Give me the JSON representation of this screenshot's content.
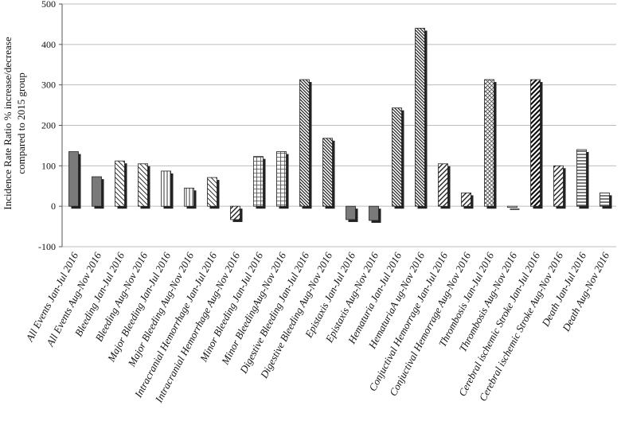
{
  "chart_data": {
    "type": "bar",
    "title": "",
    "xlabel": "",
    "ylabel": "Incidence Rate Ratio % increase/decrease compared to 2015 group",
    "ylabel_lines": [
      "Incidence  Rate  Ratio % increase/decrease",
      "compared to 2015 group"
    ],
    "ylim": [
      -100,
      500
    ],
    "yticks": [
      -100,
      0,
      100,
      200,
      300,
      400,
      500
    ],
    "grid": true,
    "legend": "none",
    "colors": {
      "bar_stroke": "#222222",
      "shadow": "#222222",
      "grid": "#bdbdbd",
      "axis": "#555555"
    },
    "categories": [
      "All Events  Jan-Jul 2016",
      "All Events Aug-Nov 2016",
      "Bleeding  Jan-Jul 2016",
      "Bleeding  Aug-Nov 2016",
      "Major Bleeding  Jan-Jul 2016",
      "Major Bleeding  Aug-Nov 2016",
      "Intracranial  Hemorrhage  Jan-Jul 2016",
      "Intracranial  Hemorrhage  Aug-Nov 2016",
      "Minor  Bleeding  Jan-Jul 2016",
      "Minor  BleedingAug-Nov 2016",
      "Digestive  Bleeding  Jan-Jul 2016",
      "Digestive  Bleeding  Aug-Nov 2016",
      "Epistaxis  Jan-Jul 2016",
      "Epistaxis  Aug-Nov 2016",
      "Hematuria  Jan-Jul 2016",
      "HematuriaA  ug-Nov 2016",
      "Conjuctival  Hemorrage  Jan-Jul 2016",
      "Conjuctival  Hemorrage  Aug-Nov 2016",
      "Thrombosis  Jan-Jul 2016",
      "Thrombosis  Aug-Nov 2016",
      "Cerebral ischemic  Stroke  Jan-Jul 2016",
      "Cerebral ischemic  Stroke Aug-Nov 2016",
      "Death  Jan-Jul 2016",
      "Death  Aug-Nov 2016"
    ],
    "values": [
      135,
      73,
      112,
      105,
      87,
      45,
      71,
      -33,
      123,
      135,
      313,
      168,
      -33,
      -35,
      243,
      440,
      105,
      33,
      313,
      0,
      313,
      100,
      140,
      33
    ],
    "patterns": [
      "solid",
      "solid",
      "diag-left-light",
      "diag-left-light",
      "vertical",
      "vertical",
      "diag-left-light",
      "diag-right",
      "grid",
      "grid",
      "diag-left-dense",
      "diag-left-dense",
      "solid",
      "solid",
      "diag-left-dense",
      "diag-left-dense",
      "diag-right",
      "diag-right",
      "crosshatch",
      "none",
      "diag-right-bold",
      "diag-right",
      "horizontal",
      "horizontal"
    ]
  }
}
